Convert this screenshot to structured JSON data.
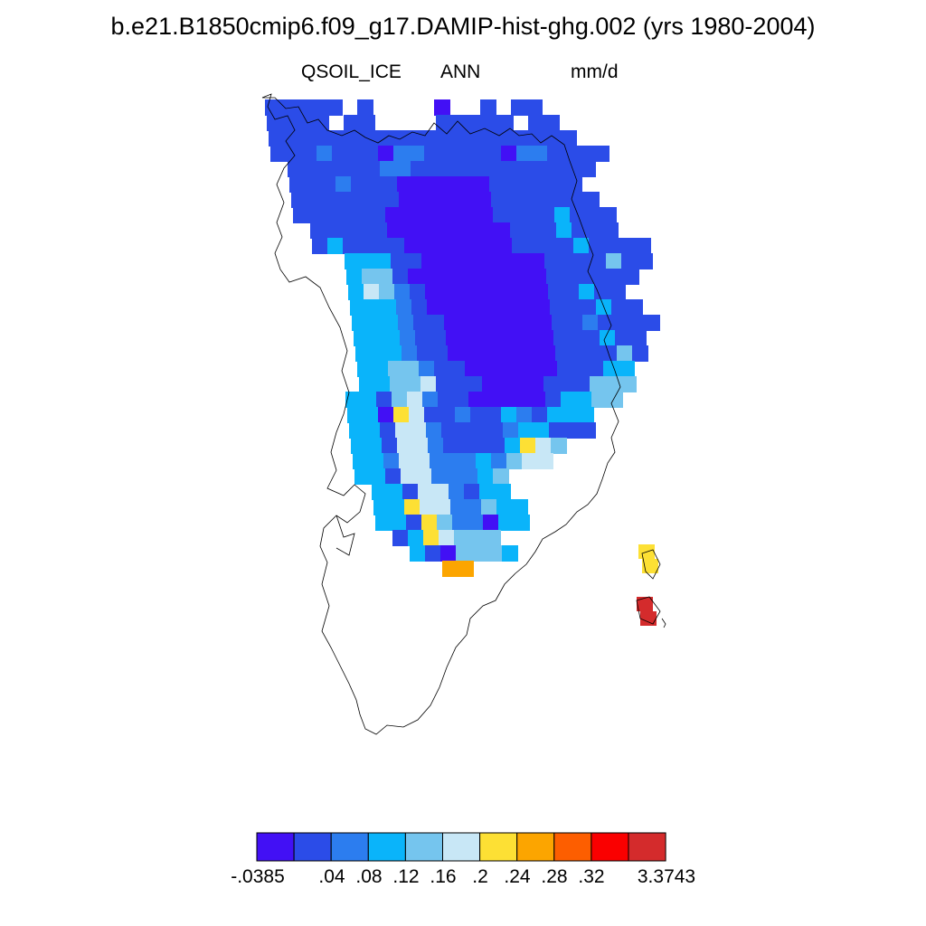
{
  "header": {
    "title": "b.e21.B1850cmip6.f09_g17.DAMIP-hist-ghg.002 (yrs 1980-2004)",
    "variable": "QSOIL_ICE",
    "period": "ANN",
    "units": "mm/d"
  },
  "legend": {
    "colors": [
      "#4210F5",
      "#2B4CE8",
      "#2C7DEF",
      "#0AB4FA",
      "#75C5EE",
      "#C8E7F6",
      "#FDE034",
      "#FCA500",
      "#FD5E00",
      "#FA0000",
      "#D42B2C"
    ],
    "tick_labels": [
      "-.0385",
      ".04",
      ".08",
      ".12",
      ".16",
      ".2",
      ".24",
      ".28",
      ".32",
      "3.3743"
    ]
  },
  "map": {
    "region": "Greenland",
    "max_value": 3.3743,
    "min_value": -0.0385
  }
}
